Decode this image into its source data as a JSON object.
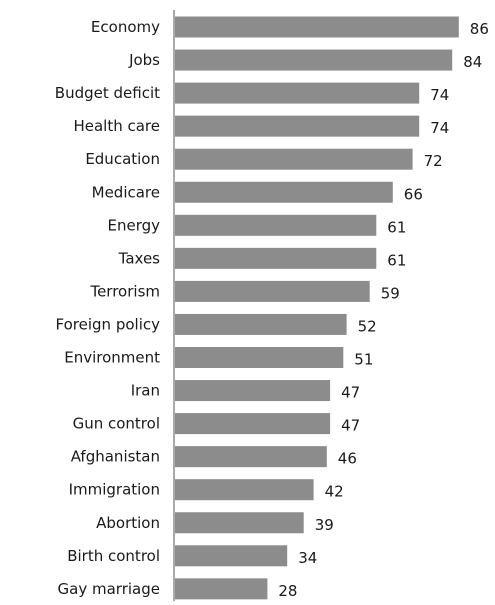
{
  "chart_data": {
    "type": "bar",
    "orientation": "horizontal",
    "title": "",
    "xlabel": "",
    "ylabel": "",
    "categories": [
      "Economy",
      "Jobs",
      "Budget deficit",
      "Health care",
      "Education",
      "Medicare",
      "Energy",
      "Taxes",
      "Terrorism",
      "Foreign policy",
      "Environment",
      "Iran",
      "Gun control",
      "Afghanistan",
      "Immigration",
      "Abortion",
      "Birth control",
      "Gay marriage"
    ],
    "values": [
      86,
      84,
      74,
      74,
      72,
      66,
      61,
      61,
      59,
      52,
      51,
      47,
      47,
      46,
      42,
      39,
      34,
      28
    ],
    "xlim": [
      0,
      100
    ],
    "grid": false,
    "legend": "none",
    "data_labels": true,
    "colors": {
      "bar": "#8c8c8c",
      "axis": "#555555",
      "text": "#1a1a1a"
    }
  }
}
